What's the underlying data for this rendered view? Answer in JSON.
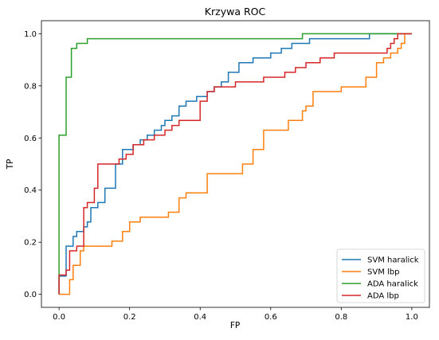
{
  "chart_data": {
    "type": "line",
    "title": "Krzywa ROC",
    "xlabel": "FP",
    "ylabel": "TP",
    "xlim": [
      -0.05,
      1.05
    ],
    "ylim": [
      -0.05,
      1.05
    ],
    "xticks": [
      "0.0",
      "0.2",
      "0.4",
      "0.6",
      "0.8",
      "1.0"
    ],
    "yticks": [
      "0.0",
      "0.2",
      "0.4",
      "0.6",
      "0.8",
      "1.0"
    ],
    "grid": false,
    "legend_position": "bottom-right",
    "series": [
      {
        "name": "SVM haralick",
        "color": "#1f77b4",
        "x": [
          0.0,
          0.0,
          0.02,
          0.02,
          0.04,
          0.04,
          0.05,
          0.05,
          0.07,
          0.07,
          0.08,
          0.08,
          0.09,
          0.09,
          0.11,
          0.11,
          0.13,
          0.13,
          0.16,
          0.16,
          0.18,
          0.18,
          0.21,
          0.21,
          0.23,
          0.23,
          0.25,
          0.25,
          0.27,
          0.27,
          0.29,
          0.29,
          0.3,
          0.3,
          0.32,
          0.32,
          0.34,
          0.34,
          0.36,
          0.36,
          0.39,
          0.39,
          0.42,
          0.42,
          0.44,
          0.44,
          0.46,
          0.46,
          0.48,
          0.48,
          0.51,
          0.51,
          0.55,
          0.55,
          0.6,
          0.6,
          0.63,
          0.63,
          0.66,
          0.66,
          0.71,
          0.71,
          0.73,
          0.73,
          0.88,
          0.88,
          1.0
        ],
        "y": [
          0.0,
          0.07,
          0.07,
          0.185,
          0.185,
          0.222,
          0.222,
          0.241,
          0.241,
          0.259,
          0.259,
          0.278,
          0.278,
          0.333,
          0.333,
          0.352,
          0.352,
          0.407,
          0.407,
          0.5,
          0.5,
          0.556,
          0.556,
          0.574,
          0.574,
          0.593,
          0.593,
          0.611,
          0.611,
          0.63,
          0.63,
          0.648,
          0.648,
          0.667,
          0.667,
          0.685,
          0.685,
          0.722,
          0.722,
          0.741,
          0.741,
          0.759,
          0.759,
          0.778,
          0.778,
          0.796,
          0.796,
          0.815,
          0.815,
          0.852,
          0.852,
          0.889,
          0.889,
          0.907,
          0.907,
          0.926,
          0.926,
          0.944,
          0.944,
          0.963,
          0.963,
          0.981,
          0.981,
          0.981,
          0.981,
          1.0,
          1.0
        ]
      },
      {
        "name": "SVM lbp",
        "color": "#ff7f0e",
        "x": [
          0.0,
          0.03,
          0.03,
          0.04,
          0.04,
          0.06,
          0.06,
          0.07,
          0.07,
          0.15,
          0.15,
          0.18,
          0.18,
          0.2,
          0.2,
          0.23,
          0.23,
          0.31,
          0.31,
          0.34,
          0.34,
          0.36,
          0.36,
          0.42,
          0.42,
          0.52,
          0.52,
          0.55,
          0.55,
          0.58,
          0.58,
          0.65,
          0.65,
          0.69,
          0.69,
          0.7,
          0.7,
          0.72,
          0.72,
          0.8,
          0.8,
          0.87,
          0.87,
          0.9,
          0.9,
          0.92,
          0.92,
          0.94,
          0.94,
          0.96,
          0.96,
          0.97,
          0.97,
          0.98,
          0.98,
          1.0
        ],
        "y": [
          0.0,
          0.0,
          0.056,
          0.056,
          0.111,
          0.111,
          0.167,
          0.167,
          0.185,
          0.185,
          0.204,
          0.204,
          0.241,
          0.241,
          0.278,
          0.278,
          0.296,
          0.296,
          0.315,
          0.315,
          0.37,
          0.37,
          0.389,
          0.389,
          0.463,
          0.463,
          0.5,
          0.5,
          0.556,
          0.556,
          0.63,
          0.63,
          0.667,
          0.667,
          0.704,
          0.704,
          0.722,
          0.722,
          0.778,
          0.778,
          0.796,
          0.796,
          0.833,
          0.833,
          0.889,
          0.889,
          0.907,
          0.907,
          0.926,
          0.926,
          0.944,
          0.944,
          0.963,
          0.963,
          1.0,
          1.0
        ]
      },
      {
        "name": "ADA haralick",
        "color": "#2ca02c",
        "x": [
          0.0,
          0.0,
          0.02,
          0.02,
          0.035,
          0.035,
          0.05,
          0.05,
          0.08,
          0.08,
          0.69,
          0.69,
          1.0
        ],
        "y": [
          0.0,
          0.611,
          0.611,
          0.833,
          0.833,
          0.944,
          0.944,
          0.963,
          0.963,
          0.981,
          0.981,
          1.0,
          1.0
        ]
      },
      {
        "name": "ADA lbp",
        "color": "#d62728",
        "x": [
          0.0,
          0.0,
          0.02,
          0.02,
          0.03,
          0.03,
          0.05,
          0.05,
          0.07,
          0.07,
          0.08,
          0.08,
          0.1,
          0.1,
          0.11,
          0.11,
          0.17,
          0.17,
          0.19,
          0.19,
          0.21,
          0.21,
          0.24,
          0.24,
          0.27,
          0.27,
          0.3,
          0.3,
          0.32,
          0.32,
          0.34,
          0.34,
          0.4,
          0.4,
          0.42,
          0.42,
          0.44,
          0.44,
          0.45,
          0.45,
          0.5,
          0.5,
          0.58,
          0.58,
          0.64,
          0.64,
          0.67,
          0.67,
          0.7,
          0.7,
          0.74,
          0.74,
          0.78,
          0.78,
          0.93,
          0.93,
          0.94,
          0.94,
          0.95,
          0.95,
          0.96,
          0.96,
          0.97,
          0.97,
          1.0
        ],
        "y": [
          0.0,
          0.074,
          0.074,
          0.093,
          0.093,
          0.167,
          0.167,
          0.185,
          0.185,
          0.333,
          0.333,
          0.352,
          0.352,
          0.407,
          0.407,
          0.5,
          0.5,
          0.519,
          0.519,
          0.537,
          0.537,
          0.574,
          0.574,
          0.593,
          0.593,
          0.611,
          0.611,
          0.63,
          0.63,
          0.648,
          0.648,
          0.667,
          0.667,
          0.741,
          0.741,
          0.778,
          0.778,
          0.796,
          0.796,
          0.796,
          0.796,
          0.815,
          0.815,
          0.833,
          0.833,
          0.852,
          0.852,
          0.87,
          0.87,
          0.889,
          0.889,
          0.907,
          0.907,
          0.926,
          0.926,
          0.944,
          0.944,
          0.963,
          0.963,
          0.981,
          0.981,
          1.0,
          1.0,
          1.0,
          1.0
        ]
      }
    ]
  }
}
